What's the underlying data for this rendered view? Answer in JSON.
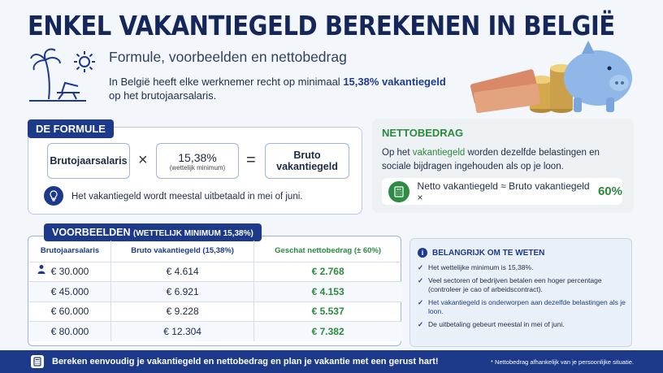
{
  "header": {
    "title": "ENKEL VAKANTIEGELD BEREKENEN IN BELGIË",
    "subtitle": "Formule, voorbeelden en nettobedrag",
    "intro_before": "In België heeft elke werknemer recht op minimaal ",
    "intro_highlight": "15,38% vakantiegeld",
    "intro_after": " op het brutojaarsalaris."
  },
  "formula": {
    "tag": "DE FORMULE",
    "box1": "Brutojaarsalaris",
    "operator1": "×",
    "box2_value": "15,38%",
    "box2_sub": "(wettelijk minimum)",
    "operator2": "=",
    "box3_line1": "Bruto",
    "box3_line2": "vakantiegeld",
    "note": "Het vakantiegeld wordt meestal uitbetaald in mei of juni."
  },
  "netto": {
    "title": "NETTOBEDRAG",
    "text_before": "Op het ",
    "text_highlight": "vakantiegeld",
    "text_after": " worden dezelfde belastingen en sociale bijdragen ingehouden als op je loon.",
    "formula_text": "Netto vakantiegeld ≈ Bruto vakantiegeld ×",
    "formula_pct": "60%"
  },
  "examples": {
    "tag": "VOORBEELDEN",
    "tag_sub": "(WETTELIJK MINIMUM 15,38%)",
    "columns": [
      "Brutojaarsalaris",
      "Bruto vakantiegeld (15,38%)",
      "Geschat nettobedrag (± 60%)"
    ],
    "rows": [
      [
        "€ 30.000",
        "€ 4.614",
        "€ 2.768"
      ],
      [
        "€ 45.000",
        "€ 6.921",
        "€ 4.153"
      ],
      [
        "€ 60.000",
        "€ 9.228",
        "€ 5.537"
      ],
      [
        "€ 80.000",
        "€ 12.304",
        "€ 7.382"
      ]
    ]
  },
  "info": {
    "title": "BELANGRIJK OM TE WETEN",
    "items": [
      "Het wettelijke minimum is 15,38%.",
      "Veel sectoren of bedrijven betalen een hoger percentage (controleer je cao of arbeidscontract).",
      "Het vakantiegeld is onderworpen aan dezelfde belastingen als je loon.",
      "De uitbetaling gebeurt meestal in mei of juni."
    ]
  },
  "footer": {
    "message": "Bereken eenvoudig je vakantiegeld en nettobedrag en plan je vakantie met een gerust hart!",
    "note": "* Nettobedrag afhankelijk van je persoonlijke situatie."
  },
  "colors": {
    "navy": "#1d3a8a",
    "green": "#2b8a3e"
  },
  "icons": [
    "palm-tree-icon",
    "sun-icon",
    "piggy-bank-icon",
    "lightbulb-icon",
    "calculator-icon",
    "person-icon",
    "info-icon",
    "check-icon"
  ]
}
